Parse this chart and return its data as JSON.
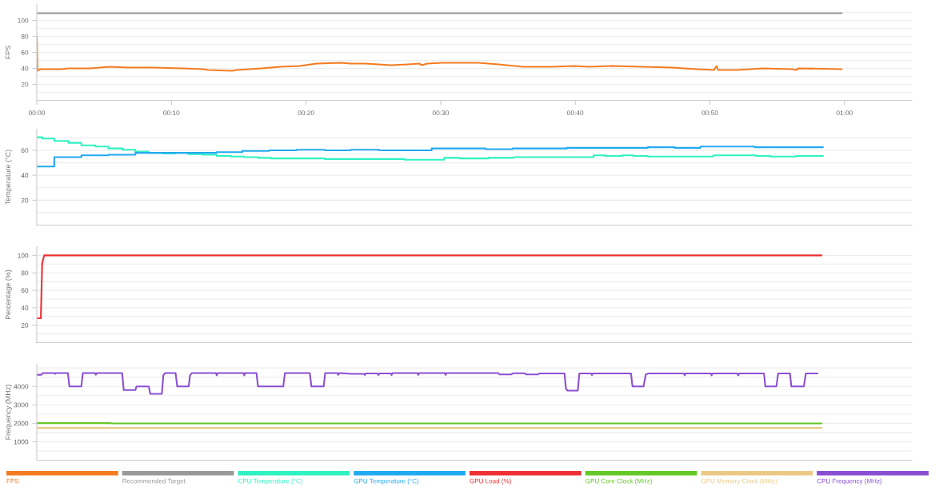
{
  "chart_data": [
    {
      "type": "line",
      "ylabel": "FPS",
      "xlim": [
        0,
        65
      ],
      "xticks": [
        {
          "value": 0,
          "label": "00:00"
        },
        {
          "value": 10,
          "label": "00:10"
        },
        {
          "value": 20,
          "label": "00:20"
        },
        {
          "value": 30,
          "label": "00:30"
        },
        {
          "value": 40,
          "label": "00:40"
        },
        {
          "value": 50,
          "label": "00:50"
        },
        {
          "value": 60,
          "label": "01:00"
        }
      ],
      "ylim": [
        0,
        120
      ],
      "yticks": [
        {
          "value": 10,
          "label": null
        },
        20,
        {
          "value": 30,
          "label": null
        },
        40,
        {
          "value": 50,
          "label": null
        },
        60,
        {
          "value": 70,
          "label": null
        },
        80,
        {
          "value": 90,
          "label": null
        },
        100,
        {
          "value": 110,
          "label": null
        }
      ],
      "grid": "y",
      "legend": "bottom",
      "series": [
        {
          "name": "FPS",
          "color": "#f47b20",
          "x": [
            0,
            0.05,
            0.14,
            0.3,
            1.8,
            2.4,
            4.0,
            5.4,
            6.8,
            8.6,
            10.8,
            12.4,
            12.7,
            14.5,
            14.9,
            16.7,
            18.1,
            19.5,
            20.8,
            22.6,
            23.3,
            24.4,
            26.3,
            27.6,
            28.4,
            28.6,
            29.0,
            30.1,
            32.8,
            34.3,
            36.1,
            38.3,
            39.9,
            41.0,
            42.8,
            45.0,
            47.2,
            49.0,
            50.3,
            50.5,
            50.6,
            52.1,
            53.9,
            56.1,
            56.4,
            56.6,
            59.8
          ],
          "values": [
            80,
            37,
            38,
            39,
            39,
            40,
            40,
            42,
            41,
            41,
            40,
            39,
            38,
            37,
            38,
            40,
            42,
            43,
            46,
            47,
            46,
            46,
            44,
            45,
            46,
            44,
            46,
            47,
            47,
            45,
            42,
            42,
            43,
            42,
            43,
            42,
            41,
            39,
            38,
            43,
            38,
            38,
            40,
            39,
            38,
            40,
            39
          ]
        },
        {
          "name": "Recommended Target",
          "color": "#999999",
          "x": [
            0,
            59.8
          ],
          "values": [
            109,
            109
          ]
        }
      ]
    },
    {
      "type": "line",
      "ylabel": "Temperature (°C)",
      "xlim": [
        0,
        65
      ],
      "tick_labels": "y",
      "ylim": [
        0,
        77
      ],
      "yticks": [
        {
          "value": 10,
          "label": null
        },
        20,
        {
          "value": 30,
          "label": null
        },
        40,
        {
          "value": 50,
          "label": null
        },
        60,
        {
          "value": 70,
          "label": null
        }
      ],
      "grid": "y",
      "legend": "bottom",
      "series": [
        {
          "name": "CPU Temperature (°C)",
          "type": "step",
          "color": "#2ef2c2",
          "x": [
            0,
            0.41,
            1.3,
            2.35,
            3.31,
            4.36,
            5.32,
            6.37,
            7.33,
            8.28,
            9.34,
            10.29,
            11.24,
            12.3,
            13.36,
            14.41,
            15.37,
            16.42,
            17.38,
            21.4,
            27.32,
            30.26,
            31.42,
            33.54,
            35.44,
            41.37,
            42.21,
            43.48,
            44.33,
            45.39,
            50.25,
            53.43,
            54.48,
            56.39,
            58.4
          ],
          "values": [
            70.5,
            69.5,
            67.5,
            66,
            64,
            63,
            61.5,
            60.5,
            59,
            58,
            57.5,
            58,
            57,
            56.5,
            55.5,
            55,
            54.5,
            54,
            53.5,
            53,
            52.5,
            54,
            53.5,
            54,
            54.5,
            56,
            55.5,
            56,
            55.5,
            55,
            56,
            55.5,
            55,
            55.5,
            55.5
          ]
        },
        {
          "name": "GPU Temperature (°C)",
          "type": "step",
          "color": "#22aaf0",
          "x": [
            0,
            1.3,
            3.31,
            5.32,
            7.33,
            13.36,
            15.26,
            17.27,
            19.28,
            21.4,
            23.3,
            25.42,
            29.33,
            33.33,
            35.34,
            39.36,
            45.39,
            47.4,
            49.3,
            53.32,
            58.4
          ],
          "values": [
            47,
            54.5,
            56,
            56.5,
            58,
            58.5,
            59.5,
            60,
            60.5,
            60,
            60.5,
            60,
            61.5,
            61,
            61.5,
            62,
            62.5,
            62,
            63,
            62.5,
            62.5
          ]
        }
      ]
    },
    {
      "type": "line",
      "ylabel": "Percentage (%)",
      "xlim": [
        0,
        65
      ],
      "tick_labels": "y",
      "ylim": [
        0,
        110
      ],
      "yticks": [
        {
          "value": 10,
          "label": null
        },
        20,
        {
          "value": 30,
          "label": null
        },
        40,
        {
          "value": 50,
          "label": null
        },
        60,
        {
          "value": 70,
          "label": null
        },
        80,
        {
          "value": 90,
          "label": null
        },
        100
      ],
      "grid": "y",
      "legend": "bottom",
      "series": [
        {
          "name": "GPU Load (%)",
          "color": "#ee3034",
          "x": [
            0,
            0.3,
            0.4,
            0.55,
            58.3
          ],
          "values": [
            28,
            28,
            91,
            100,
            100
          ]
        }
      ]
    },
    {
      "type": "line",
      "ylabel": "Frequency (MHz)",
      "xlim": [
        0,
        65
      ],
      "tick_labels": "y",
      "ylim": [
        0,
        5200
      ],
      "yticks": [
        {
          "value": 500,
          "label": null
        },
        1000,
        {
          "value": 1500,
          "label": null
        },
        2000,
        {
          "value": 2500,
          "label": null
        },
        3000,
        {
          "value": 3500,
          "label": null
        },
        4000,
        {
          "value": 4500,
          "label": null
        },
        {
          "value": 5000,
          "label": null
        }
      ],
      "grid": "y",
      "legend": "bottom",
      "series": [
        {
          "name": "GPU Core Clock (MHz)",
          "color": "#64c828",
          "x": [
            0,
            5.4,
            5.6,
            58.3
          ],
          "values": [
            2010,
            2010,
            1990,
            1990
          ]
        },
        {
          "name": "GPU Memory Clock (MHz)",
          "color": "#ebc985",
          "x": [
            0,
            58.3
          ],
          "values": [
            1750,
            1750
          ]
        },
        {
          "name": "CPU Frequency (MHz)",
          "color": "#8a4fd1",
          "x": [
            0,
            0.34,
            0.45,
            1.3,
            1.36,
            1.42,
            2.31,
            2.42,
            3.31,
            3.42,
            4.33,
            4.39,
            4.45,
            6.34,
            6.46,
            7.32,
            7.41,
            8.32,
            8.43,
            9.29,
            9.4,
            9.52,
            10.31,
            10.43,
            11.29,
            11.38,
            11.51,
            13.31,
            13.37,
            13.43,
            15.35,
            15.41,
            15.47,
            16.32,
            16.43,
            18.31,
            18.43,
            20.28,
            20.4,
            21.31,
            21.42,
            22.33,
            22.39,
            22.45,
            23.35,
            24.31,
            24.37,
            24.43,
            25.32,
            25.38,
            25.44,
            26.3,
            26.36,
            26.42,
            28.28,
            28.34,
            28.4,
            30.31,
            30.37,
            30.43,
            34.27,
            34.38,
            35.25,
            35.37,
            36.24,
            36.35,
            37.23,
            37.34,
            39.2,
            39.31,
            39.43,
            40.19,
            40.3,
            41.18,
            41.24,
            41.3,
            44.14,
            44.25,
            45.07,
            45.24,
            45.46,
            48.07,
            48.13,
            48.19,
            50.07,
            50.13,
            50.19,
            52.05,
            52.11,
            52.17,
            54.02,
            54.12,
            54.94,
            55.07,
            55.95,
            56.05,
            56.98,
            57.13,
            58.0
          ],
          "values": [
            4630,
            4630,
            4720,
            4720,
            4680,
            4720,
            4720,
            4000,
            4000,
            4720,
            4720,
            4630,
            4720,
            4720,
            3800,
            3800,
            4000,
            4000,
            3600,
            3600,
            4600,
            4720,
            4720,
            4000,
            4000,
            4600,
            4720,
            4720,
            4600,
            4720,
            4720,
            4600,
            4720,
            4720,
            4000,
            4000,
            4720,
            4720,
            4000,
            4000,
            4720,
            4720,
            4620,
            4720,
            4680,
            4680,
            4620,
            4700,
            4700,
            4620,
            4700,
            4700,
            4620,
            4720,
            4720,
            4620,
            4720,
            4720,
            4620,
            4720,
            4720,
            4650,
            4650,
            4710,
            4710,
            4650,
            4650,
            4700,
            4700,
            3870,
            3770,
            3770,
            4700,
            4700,
            4620,
            4700,
            4700,
            4000,
            4000,
            4650,
            4700,
            4700,
            4600,
            4700,
            4700,
            4600,
            4700,
            4700,
            4600,
            4700,
            4700,
            4000,
            4000,
            4700,
            4700,
            4000,
            4000,
            4700,
            4700
          ]
        }
      ]
    }
  ]
}
